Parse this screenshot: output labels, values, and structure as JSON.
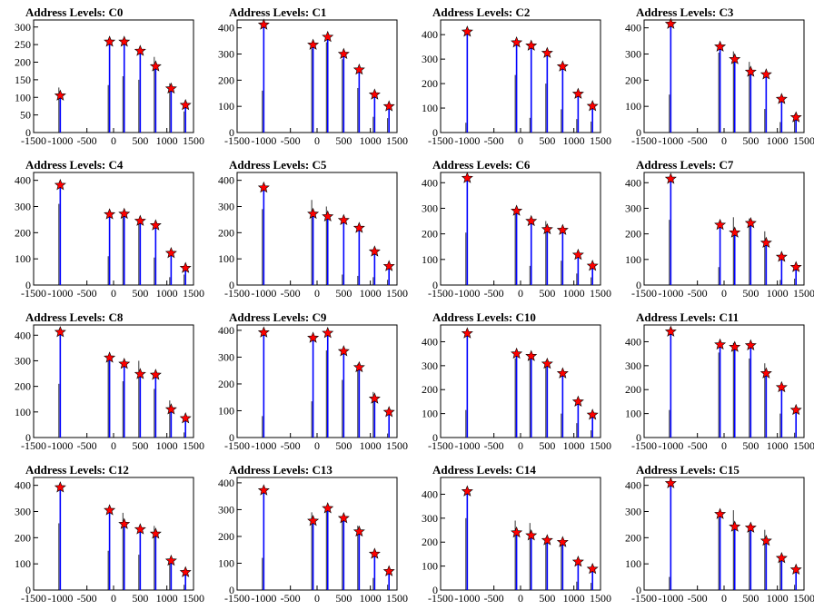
{
  "chart_data": [
    {
      "title": "Address Levels: C0",
      "type": "histogram",
      "xlim": [
        -1500,
        1500
      ],
      "ylim": [
        0,
        320
      ],
      "yticks": [
        0,
        50,
        100,
        150,
        200,
        250,
        300
      ],
      "peaks": [
        {
          "x": -1000,
          "y": 105,
          "sub": 128
        },
        {
          "x": -75,
          "y": 258,
          "sub": 135
        },
        {
          "x": 200,
          "y": 258,
          "sub": 160
        },
        {
          "x": 500,
          "y": 232,
          "sub": 150
        },
        {
          "x": 790,
          "y": 188,
          "sub": 215
        },
        {
          "x": 1080,
          "y": 125,
          "sub": 140
        },
        {
          "x": 1350,
          "y": 78,
          "sub": 60
        }
      ]
    },
    {
      "title": "Address Levels: C1",
      "type": "histogram",
      "xlim": [
        -1500,
        1500
      ],
      "ylim": [
        0,
        430
      ],
      "yticks": [
        0,
        100,
        200,
        300,
        400
      ],
      "peaks": [
        {
          "x": -1000,
          "y": 412,
          "sub": 160
        },
        {
          "x": -75,
          "y": 335,
          "sub": 320
        },
        {
          "x": 200,
          "y": 365,
          "sub": 345
        },
        {
          "x": 500,
          "y": 300,
          "sub": 280
        },
        {
          "x": 790,
          "y": 240,
          "sub": 170
        },
        {
          "x": 1080,
          "y": 145,
          "sub": 60
        },
        {
          "x": 1350,
          "y": 100,
          "sub": 55
        }
      ]
    },
    {
      "title": "Address Levels: C2",
      "type": "histogram",
      "xlim": [
        -1500,
        1500
      ],
      "ylim": [
        0,
        460
      ],
      "yticks": [
        0,
        100,
        200,
        300,
        400
      ],
      "peaks": [
        {
          "x": -1000,
          "y": 412,
          "sub": 40
        },
        {
          "x": -75,
          "y": 368,
          "sub": 235
        },
        {
          "x": 200,
          "y": 355,
          "sub": 60
        },
        {
          "x": 500,
          "y": 325,
          "sub": 200
        },
        {
          "x": 790,
          "y": 270,
          "sub": 95
        },
        {
          "x": 1080,
          "y": 158,
          "sub": 55
        },
        {
          "x": 1350,
          "y": 108,
          "sub": 45
        }
      ]
    },
    {
      "title": "Address Levels: C3",
      "type": "histogram",
      "xlim": [
        -1500,
        1500
      ],
      "ylim": [
        0,
        430
      ],
      "yticks": [
        0,
        100,
        200,
        300,
        400
      ],
      "peaks": [
        {
          "x": -1000,
          "y": 415,
          "sub": 145
        },
        {
          "x": -75,
          "y": 328,
          "sub": 305
        },
        {
          "x": 200,
          "y": 280,
          "sub": 310
        },
        {
          "x": 500,
          "y": 232,
          "sub": 270
        },
        {
          "x": 790,
          "y": 222,
          "sub": 90
        },
        {
          "x": 1080,
          "y": 128,
          "sub": 40
        },
        {
          "x": 1350,
          "y": 58,
          "sub": 70
        }
      ]
    },
    {
      "title": "Address Levels: C4",
      "type": "histogram",
      "xlim": [
        -1500,
        1500
      ],
      "ylim": [
        0,
        430
      ],
      "yticks": [
        0,
        100,
        200,
        300,
        400
      ],
      "peaks": [
        {
          "x": -1000,
          "y": 382,
          "sub": 310
        },
        {
          "x": -75,
          "y": 270,
          "sub": 110
        },
        {
          "x": 200,
          "y": 272,
          "sub": 260
        },
        {
          "x": 500,
          "y": 245,
          "sub": 235
        },
        {
          "x": 790,
          "y": 228,
          "sub": 105
        },
        {
          "x": 1080,
          "y": 122,
          "sub": 30
        },
        {
          "x": 1350,
          "y": 65,
          "sub": 40
        }
      ]
    },
    {
      "title": "Address Levels: C5",
      "type": "histogram",
      "xlim": [
        -1500,
        1500
      ],
      "ylim": [
        0,
        430
      ],
      "yticks": [
        0,
        100,
        200,
        300,
        400
      ],
      "peaks": [
        {
          "x": -1000,
          "y": 372,
          "sub": 290
        },
        {
          "x": -75,
          "y": 272,
          "sub": 325
        },
        {
          "x": 200,
          "y": 262,
          "sub": 300
        },
        {
          "x": 500,
          "y": 248,
          "sub": 40
        },
        {
          "x": 790,
          "y": 218,
          "sub": 35
        },
        {
          "x": 1080,
          "y": 128,
          "sub": 30
        },
        {
          "x": 1350,
          "y": 72,
          "sub": 20
        }
      ]
    },
    {
      "title": "Address Levels: C6",
      "type": "histogram",
      "xlim": [
        -1500,
        1500
      ],
      "ylim": [
        0,
        440
      ],
      "yticks": [
        0,
        100,
        200,
        300,
        400
      ],
      "peaks": [
        {
          "x": -1000,
          "y": 418,
          "sub": 205
        },
        {
          "x": -75,
          "y": 290,
          "sub": 285
        },
        {
          "x": 200,
          "y": 250,
          "sub": 75
        },
        {
          "x": 500,
          "y": 218,
          "sub": 250
        },
        {
          "x": 790,
          "y": 215,
          "sub": 95
        },
        {
          "x": 1080,
          "y": 118,
          "sub": 45
        },
        {
          "x": 1350,
          "y": 75,
          "sub": 30
        }
      ]
    },
    {
      "title": "Address Levels: C7",
      "type": "histogram",
      "xlim": [
        -1500,
        1500
      ],
      "ylim": [
        0,
        440
      ],
      "yticks": [
        0,
        100,
        200,
        300,
        400
      ],
      "peaks": [
        {
          "x": -1000,
          "y": 415,
          "sub": 255
        },
        {
          "x": -75,
          "y": 235,
          "sub": 70
        },
        {
          "x": 200,
          "y": 205,
          "sub": 265
        },
        {
          "x": 500,
          "y": 242,
          "sub": 260
        },
        {
          "x": 790,
          "y": 165,
          "sub": 210
        },
        {
          "x": 1080,
          "y": 110,
          "sub": 20
        },
        {
          "x": 1350,
          "y": 70,
          "sub": 25
        }
      ]
    },
    {
      "title": "Address Levels: C8",
      "type": "histogram",
      "xlim": [
        -1500,
        1500
      ],
      "ylim": [
        0,
        440
      ],
      "yticks": [
        0,
        100,
        200,
        300,
        400
      ],
      "peaks": [
        {
          "x": -1000,
          "y": 412,
          "sub": 210
        },
        {
          "x": -75,
          "y": 312,
          "sub": 300
        },
        {
          "x": 200,
          "y": 288,
          "sub": 220
        },
        {
          "x": 500,
          "y": 248,
          "sub": 300
        },
        {
          "x": 790,
          "y": 245,
          "sub": 190
        },
        {
          "x": 1080,
          "y": 110,
          "sub": 145
        },
        {
          "x": 1350,
          "y": 75,
          "sub": 20
        }
      ]
    },
    {
      "title": "Address Levels: C9",
      "type": "histogram",
      "xlim": [
        -1500,
        1500
      ],
      "ylim": [
        0,
        420
      ],
      "yticks": [
        0,
        100,
        200,
        300,
        400
      ],
      "peaks": [
        {
          "x": -1000,
          "y": 392,
          "sub": 80
        },
        {
          "x": -75,
          "y": 372,
          "sub": 135
        },
        {
          "x": 200,
          "y": 390,
          "sub": 325
        },
        {
          "x": 500,
          "y": 322,
          "sub": 215
        },
        {
          "x": 790,
          "y": 262,
          "sub": 275
        },
        {
          "x": 1080,
          "y": 145,
          "sub": 170
        },
        {
          "x": 1350,
          "y": 95,
          "sub": 15
        }
      ]
    },
    {
      "title": "Address Levels: C10",
      "type": "histogram",
      "xlim": [
        -1500,
        1500
      ],
      "ylim": [
        0,
        470
      ],
      "yticks": [
        0,
        100,
        200,
        300,
        400
      ],
      "peaks": [
        {
          "x": -1000,
          "y": 435,
          "sub": 115
        },
        {
          "x": -75,
          "y": 350,
          "sub": 330
        },
        {
          "x": 200,
          "y": 340,
          "sub": 335
        },
        {
          "x": 500,
          "y": 308,
          "sub": 320
        },
        {
          "x": 790,
          "y": 268,
          "sub": 100
        },
        {
          "x": 1080,
          "y": 150,
          "sub": 60
        },
        {
          "x": 1350,
          "y": 95,
          "sub": 30
        }
      ]
    },
    {
      "title": "Address Levels: C11",
      "type": "histogram",
      "xlim": [
        -1500,
        1500
      ],
      "ylim": [
        0,
        470
      ],
      "yticks": [
        0,
        100,
        200,
        300,
        400
      ],
      "peaks": [
        {
          "x": -1000,
          "y": 442,
          "sub": 115
        },
        {
          "x": -75,
          "y": 388,
          "sub": 355
        },
        {
          "x": 200,
          "y": 378,
          "sub": 395
        },
        {
          "x": 500,
          "y": 385,
          "sub": 330
        },
        {
          "x": 790,
          "y": 268,
          "sub": 310
        },
        {
          "x": 1080,
          "y": 210,
          "sub": 100
        },
        {
          "x": 1350,
          "y": 115,
          "sub": 20
        }
      ]
    },
    {
      "title": "Address Levels: C12",
      "type": "histogram",
      "xlim": [
        -1500,
        1500
      ],
      "ylim": [
        0,
        430
      ],
      "yticks": [
        0,
        100,
        200,
        300,
        400
      ],
      "peaks": [
        {
          "x": -1000,
          "y": 392,
          "sub": 255
        },
        {
          "x": -75,
          "y": 305,
          "sub": 150
        },
        {
          "x": 200,
          "y": 252,
          "sub": 295
        },
        {
          "x": 500,
          "y": 232,
          "sub": 135
        },
        {
          "x": 790,
          "y": 215,
          "sub": 245
        },
        {
          "x": 1080,
          "y": 112,
          "sub": 120
        },
        {
          "x": 1350,
          "y": 68,
          "sub": 20
        }
      ]
    },
    {
      "title": "Address Levels: C13",
      "type": "histogram",
      "xlim": [
        -1500,
        1500
      ],
      "ylim": [
        0,
        420
      ],
      "yticks": [
        0,
        100,
        200,
        300,
        400
      ],
      "peaks": [
        {
          "x": -1000,
          "y": 372,
          "sub": 120
        },
        {
          "x": -75,
          "y": 258,
          "sub": 290
        },
        {
          "x": 200,
          "y": 305,
          "sub": 295
        },
        {
          "x": 500,
          "y": 268,
          "sub": 260
        },
        {
          "x": 790,
          "y": 218,
          "sub": 240
        },
        {
          "x": 1080,
          "y": 135,
          "sub": 45
        },
        {
          "x": 1350,
          "y": 70,
          "sub": 20
        }
      ]
    },
    {
      "title": "Address Levels: C14",
      "type": "histogram",
      "xlim": [
        -1500,
        1500
      ],
      "ylim": [
        0,
        470
      ],
      "yticks": [
        0,
        100,
        200,
        300,
        400
      ],
      "peaks": [
        {
          "x": -1000,
          "y": 412,
          "sub": 300
        },
        {
          "x": -75,
          "y": 240,
          "sub": 290
        },
        {
          "x": 200,
          "y": 228,
          "sub": 280
        },
        {
          "x": 500,
          "y": 208,
          "sub": 220
        },
        {
          "x": 790,
          "y": 200,
          "sub": 190
        },
        {
          "x": 1080,
          "y": 118,
          "sub": 35
        },
        {
          "x": 1350,
          "y": 88,
          "sub": 30
        }
      ]
    },
    {
      "title": "Address Levels: C15",
      "type": "histogram",
      "xlim": [
        -1500,
        1500
      ],
      "ylim": [
        0,
        430
      ],
      "yticks": [
        0,
        100,
        200,
        300,
        400
      ],
      "peaks": [
        {
          "x": -1000,
          "y": 408,
          "sub": 50
        },
        {
          "x": -75,
          "y": 290,
          "sub": 275
        },
        {
          "x": 200,
          "y": 242,
          "sub": 305
        },
        {
          "x": 500,
          "y": 238,
          "sub": 250
        },
        {
          "x": 790,
          "y": 188,
          "sub": 230
        },
        {
          "x": 1080,
          "y": 122,
          "sub": 110
        },
        {
          "x": 1350,
          "y": 78,
          "sub": 20
        }
      ]
    }
  ],
  "x_tick_labels": [
    "-1500",
    "-1000",
    "-500",
    "0",
    "500",
    "1000",
    "1500"
  ],
  "colors": {
    "histogram": "#0000ff",
    "secondary": "#000000",
    "marker": "#ff0000",
    "marker_edge": "#000000"
  }
}
